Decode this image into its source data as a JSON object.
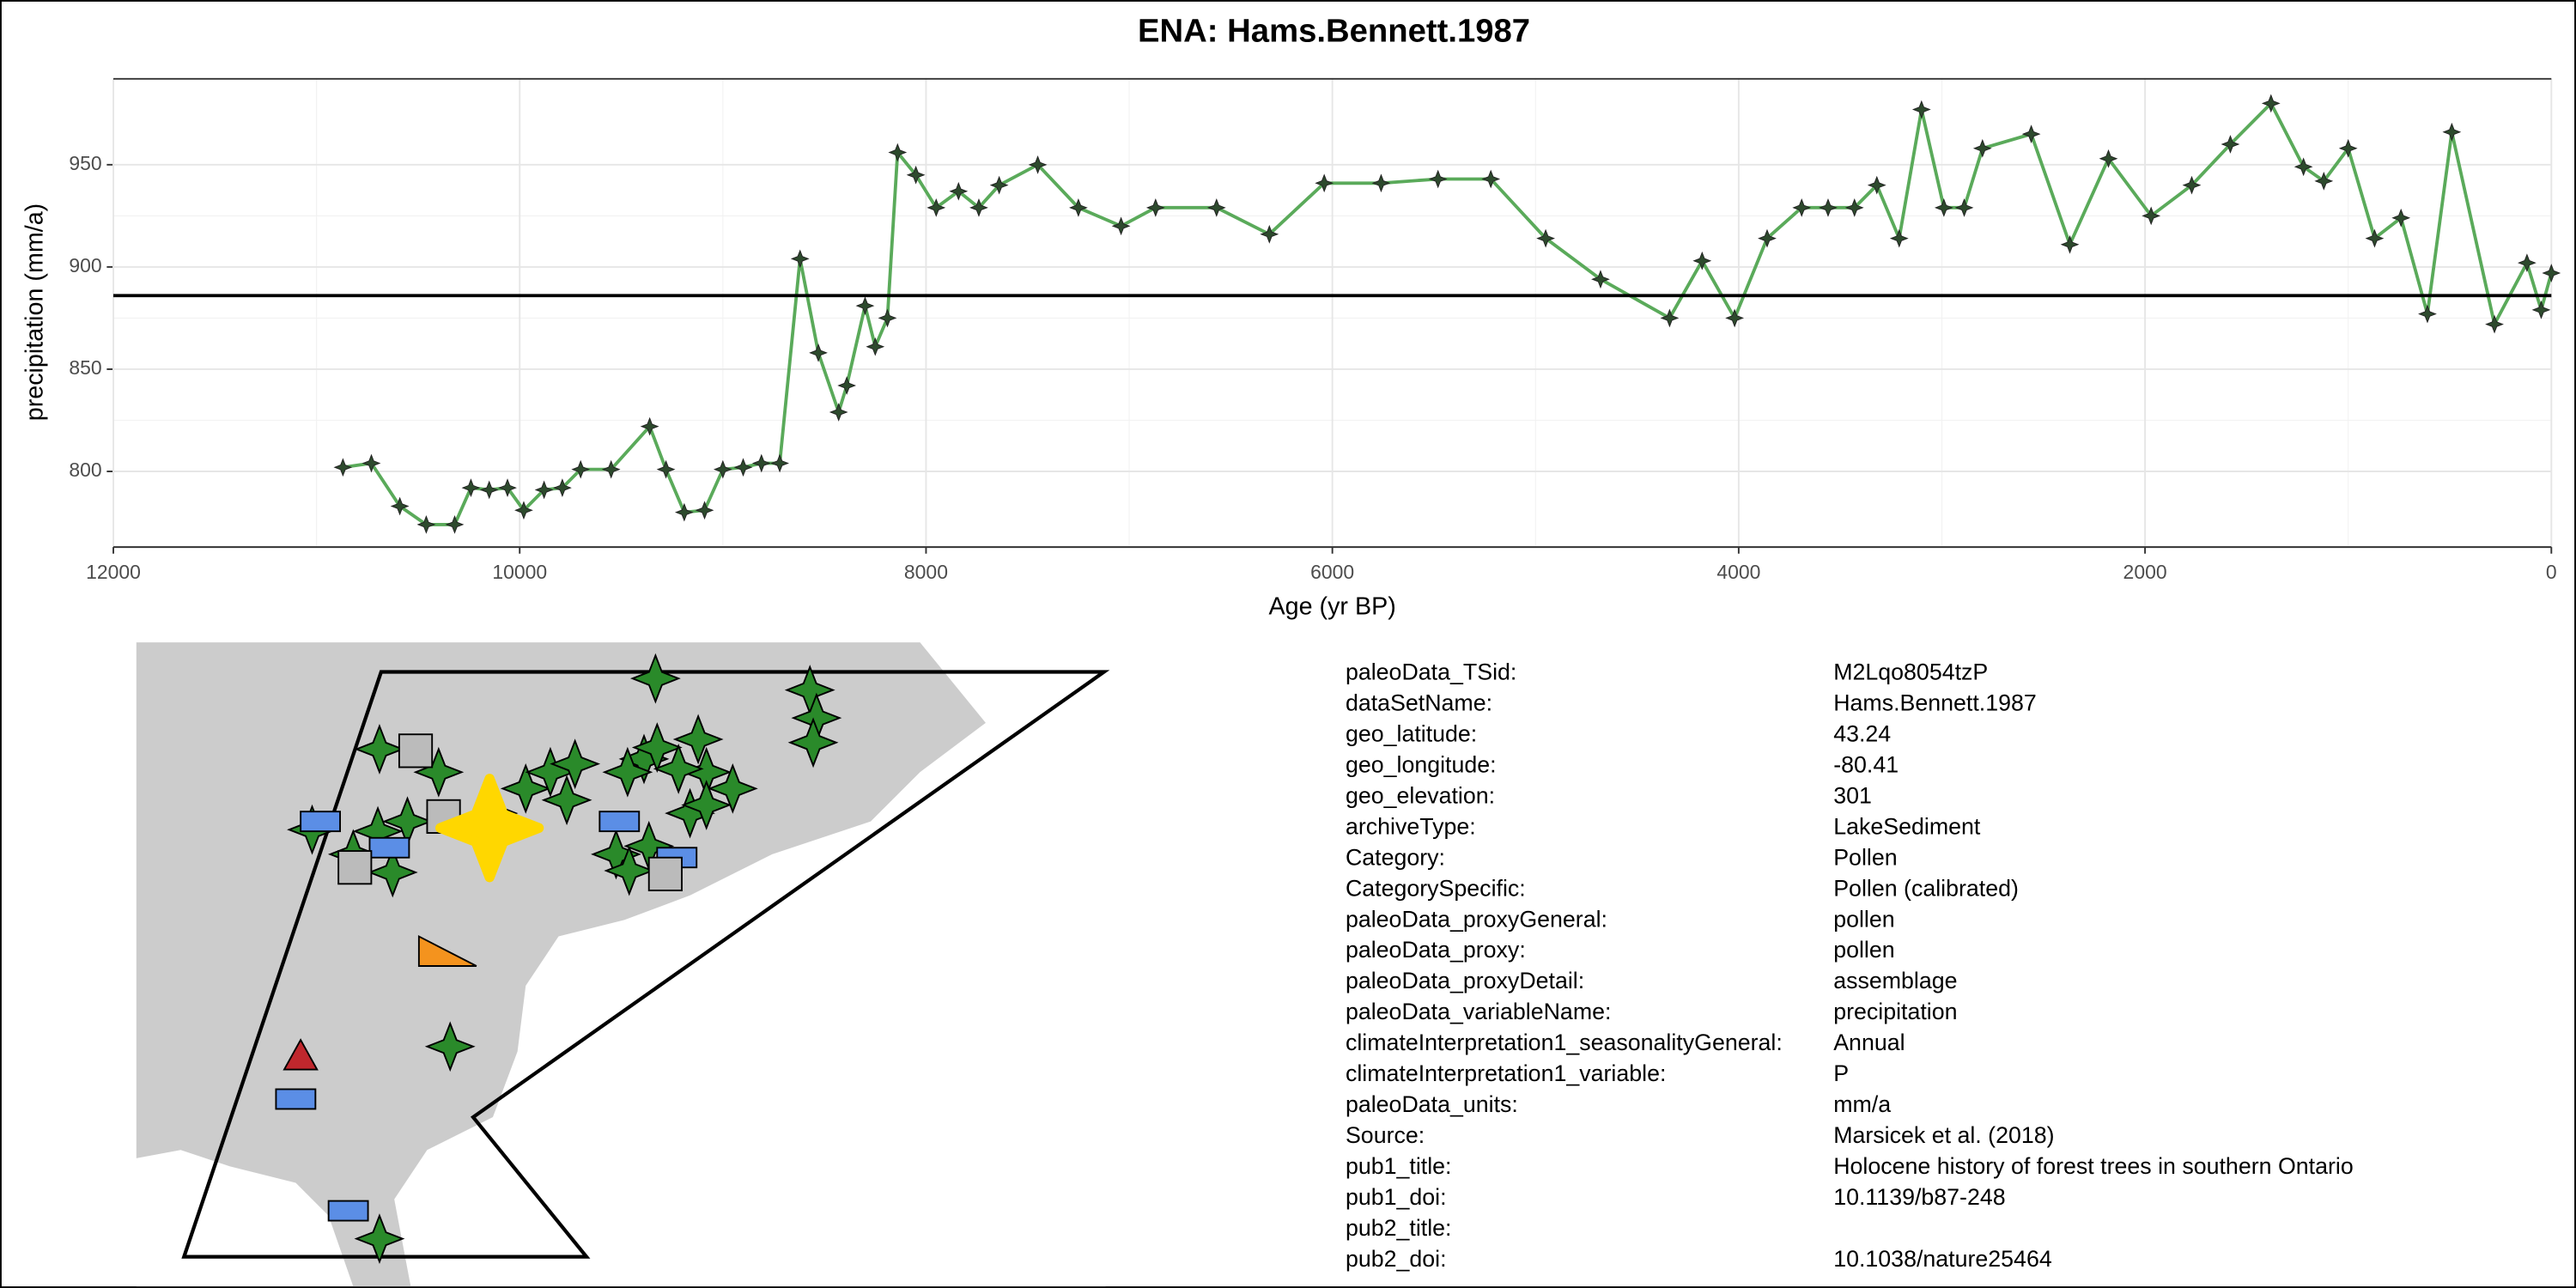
{
  "chart_data": {
    "type": "line",
    "title": "ENA: Hams.Bennett.1987",
    "x_label": "Age (yr BP)",
    "y_label": "precipitation (mm/a)",
    "x": [
      10870,
      10730,
      10590,
      10460,
      10320,
      10240,
      10150,
      10060,
      9980,
      9880,
      9790,
      9700,
      9550,
      9360,
      9280,
      9190,
      9090,
      9000,
      8900,
      8810,
      8720,
      8620,
      8530,
      8430,
      8390,
      8300,
      8250,
      8190,
      8140,
      8050,
      7950,
      7840,
      7740,
      7640,
      7450,
      7250,
      7040,
      6870,
      6570,
      6310,
      6040,
      5760,
      5480,
      5220,
      4950,
      4680,
      4340,
      4180,
      4020,
      3860,
      3690,
      3560,
      3430,
      3320,
      3210,
      3100,
      2990,
      2890,
      2800,
      2560,
      2370,
      2180,
      1970,
      1770,
      1580,
      1380,
      1220,
      1120,
      1000,
      870,
      740,
      610,
      490,
      280,
      120,
      50,
      0
    ],
    "values": [
      802,
      804,
      783,
      774,
      774,
      792,
      791,
      792,
      781,
      791,
      792,
      801,
      801,
      822,
      801,
      780,
      781,
      801,
      802,
      804,
      804,
      904,
      858,
      829,
      842,
      881,
      861,
      875,
      956,
      945,
      929,
      937,
      929,
      940,
      950,
      929,
      920,
      929,
      929,
      916,
      941,
      941,
      943,
      943,
      914,
      894,
      875,
      903,
      875,
      914,
      929,
      929,
      929,
      940,
      914,
      977,
      929,
      929,
      958,
      965,
      911,
      953,
      925,
      940,
      960,
      980,
      949,
      942,
      958,
      914,
      924,
      877,
      966,
      872,
      902,
      879,
      897
    ],
    "color": "#5aaa5a",
    "hline": 886,
    "xlim": [
      12000,
      0
    ],
    "xticks": [
      12000,
      10000,
      8000,
      6000,
      4000,
      2000,
      0
    ],
    "ylim": [
      763,
      992
    ],
    "yticks": [
      800,
      850,
      900,
      950
    ],
    "grid": true
  },
  "metadata": {
    "rows": [
      [
        "paleoData_TSid:",
        "M2Lqo8054tzP"
      ],
      [
        "dataSetName:",
        "Hams.Bennett.1987"
      ],
      [
        "geo_latitude:",
        "43.24"
      ],
      [
        "geo_longitude:",
        "-80.41"
      ],
      [
        "geo_elevation:",
        "301"
      ],
      [
        "archiveType:",
        "LakeSediment"
      ],
      [
        "Category:",
        "Pollen"
      ],
      [
        "CategorySpecific:",
        "Pollen (calibrated)"
      ],
      [
        "paleoData_proxyGeneral:",
        "pollen"
      ],
      [
        "paleoData_proxy:",
        "pollen"
      ],
      [
        "paleoData_proxyDetail:",
        "assemblage"
      ],
      [
        "paleoData_variableName:",
        "precipitation"
      ],
      [
        "climateInterpretation1_seasonalityGeneral:",
        "Annual"
      ],
      [
        "climateInterpretation1_variable:",
        "P"
      ],
      [
        "paleoData_units:",
        "mm/a"
      ],
      [
        "Source:",
        "Marsicek et al. (2018)"
      ],
      [
        "pub1_title:",
        "Holocene history of forest trees in southern Ontario"
      ],
      [
        "pub1_doi:",
        "10.1139/b87-248"
      ],
      [
        "pub2_title:"
      ],
      [
        "pub2_doi:",
        "10.1038/nature25464"
      ]
    ]
  }
}
